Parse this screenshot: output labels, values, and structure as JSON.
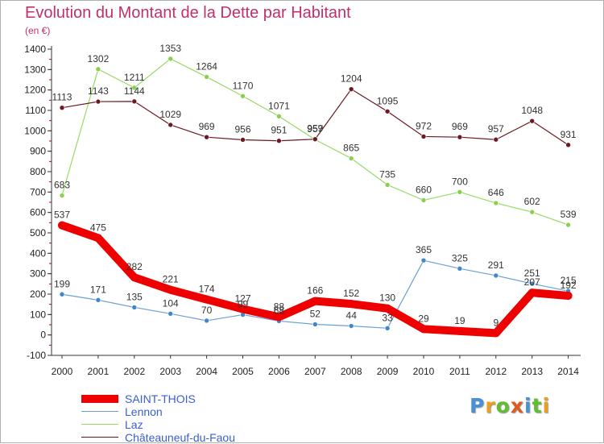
{
  "title": "Evolution du Montant de la Dette par Habitant",
  "unit_label": "(en €)",
  "logo": {
    "text": "Proxiti",
    "colors": [
      "#4a90d9",
      "#e8a020",
      "#5fbf30",
      "#e05a20",
      "#4a90d9",
      "#5fbf30",
      "#e8a020"
    ]
  },
  "chart_data": {
    "type": "line",
    "title": "Evolution du Montant de la Dette par Habitant",
    "ylabel": "(en €)",
    "xlabel": "",
    "x": [
      "2000",
      "2001",
      "2002",
      "2003",
      "2004",
      "2005",
      "2006",
      "2007",
      "2008",
      "2009",
      "2010",
      "2011",
      "2012",
      "2013",
      "2014"
    ],
    "ylim": [
      -100,
      1400
    ],
    "yticks": [
      -100,
      0,
      100,
      200,
      300,
      400,
      500,
      600,
      700,
      800,
      900,
      1000,
      1100,
      1200,
      1300,
      1400
    ],
    "grid": false,
    "legend_position": "bottom-left",
    "series": [
      {
        "name": "SAINT-THOIS",
        "color": "#ee0000",
        "width": 10,
        "marker": "#ee0000",
        "values": [
          537,
          475,
          282,
          221,
          174,
          127,
          88,
          166,
          152,
          130,
          29,
          19,
          9,
          207,
          192
        ],
        "labels": [
          "537",
          "475",
          "282",
          "221",
          "174",
          "127",
          "88",
          "166",
          "152",
          "130",
          "29",
          "19",
          "9",
          "207",
          "192"
        ]
      },
      {
        "name": "Lennon",
        "color": "#6aa0d8",
        "width": 1.2,
        "marker": "#3f86cc",
        "values": [
          199,
          171,
          135,
          104,
          70,
          99,
          68,
          52,
          44,
          33,
          365,
          325,
          291,
          251,
          215
        ],
        "labels": [
          "199",
          "171",
          "135",
          "104",
          "70",
          "99",
          "68",
          "52",
          "44",
          "33",
          "365",
          "325",
          "291",
          "251",
          "215"
        ]
      },
      {
        "name": "Laz",
        "color": "#99d966",
        "width": 1.2,
        "marker": "#88d050",
        "values": [
          683,
          1302,
          1211,
          1353,
          1264,
          1170,
          1071,
          957,
          865,
          735,
          660,
          700,
          646,
          602,
          539
        ],
        "labels": [
          "683",
          "1302",
          "1211",
          "1353",
          "1264",
          "1170",
          "1071",
          "957",
          "865",
          "735",
          "660",
          "700",
          "646",
          "602",
          "539"
        ]
      },
      {
        "name": "Châteauneuf-du-Faou",
        "color": "#6b1a22",
        "width": 1.2,
        "marker": "#6b1a22",
        "values": [
          1113,
          1143,
          1144,
          1029,
          969,
          956,
          951,
          959,
          1204,
          1095,
          972,
          969,
          957,
          1048,
          931
        ],
        "labels": [
          "1113",
          "1143",
          "1144",
          "1029",
          "969",
          "956",
          "951",
          "959",
          "1204",
          "1095",
          "972",
          "969",
          "957",
          "1048",
          "931"
        ]
      }
    ]
  }
}
